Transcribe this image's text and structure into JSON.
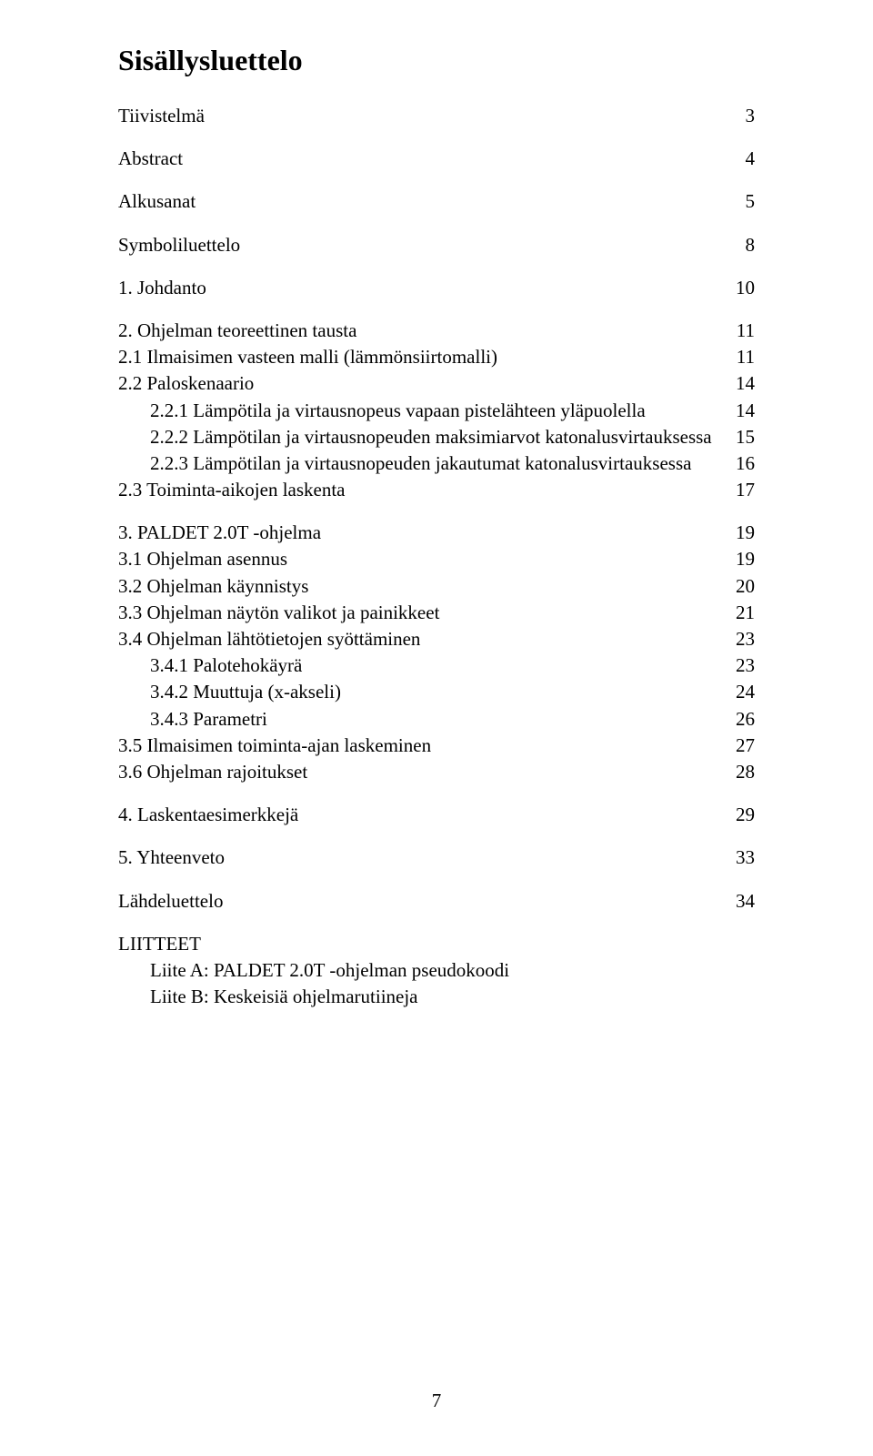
{
  "title": "Sisällysluettelo",
  "page_number": "7",
  "fonts": {
    "title_size_pt": 24,
    "body_size_pt": 16,
    "family": "Times New Roman"
  },
  "colors": {
    "text": "#000000",
    "background": "#ffffff"
  },
  "toc": [
    {
      "label": "Tiivistelmä",
      "page": "3",
      "indent": 0,
      "gap_after": true
    },
    {
      "label": "Abstract",
      "page": "4",
      "indent": 0,
      "gap_after": true
    },
    {
      "label": "Alkusanat",
      "page": "5",
      "indent": 0,
      "gap_after": true
    },
    {
      "label": "Symboliluettelo",
      "page": "8",
      "indent": 0,
      "gap_after": true
    },
    {
      "label": "1. Johdanto",
      "page": "10",
      "indent": 0,
      "gap_after": true
    },
    {
      "label": "2. Ohjelman teoreettinen tausta",
      "page": "11",
      "indent": 0
    },
    {
      "label": "2.1 Ilmaisimen vasteen malli (lämmönsiirtomalli)",
      "page": "11",
      "indent": 1
    },
    {
      "label": "2.2 Paloskenaario",
      "page": "14",
      "indent": 1
    },
    {
      "label": "2.2.1 Lämpötila ja virtausnopeus vapaan pistelähteen yläpuolella",
      "page": "14",
      "indent": 2
    },
    {
      "label": "2.2.2 Lämpötilan ja virtausnopeuden maksimiarvot katonalusvirtauksessa",
      "page": "15",
      "indent": 2
    },
    {
      "label": "2.2.3 Lämpötilan ja virtausnopeuden jakautumat katonalusvirtauksessa",
      "page": "16",
      "indent": 2
    },
    {
      "label": "2.3 Toiminta-aikojen laskenta",
      "page": "17",
      "indent": 1,
      "gap_after": true
    },
    {
      "label": "3. PALDET 2.0T -ohjelma",
      "page": "19",
      "indent": 0
    },
    {
      "label": "3.1 Ohjelman asennus",
      "page": "19",
      "indent": 1
    },
    {
      "label": "3.2 Ohjelman käynnistys",
      "page": "20",
      "indent": 1
    },
    {
      "label": "3.3 Ohjelman näytön valikot ja painikkeet",
      "page": "21",
      "indent": 1
    },
    {
      "label": "3.4 Ohjelman lähtötietojen syöttäminen",
      "page": "23",
      "indent": 1
    },
    {
      "label": "3.4.1 Palotehokäyrä",
      "page": "23",
      "indent": 2
    },
    {
      "label": "3.4.2 Muuttuja (x-akseli)",
      "page": "24",
      "indent": 2
    },
    {
      "label": "3.4.3 Parametri",
      "page": "26",
      "indent": 2
    },
    {
      "label": "3.5 Ilmaisimen toiminta-ajan laskeminen",
      "page": "27",
      "indent": 1
    },
    {
      "label": "3.6 Ohjelman rajoitukset",
      "page": "28",
      "indent": 1,
      "gap_after": true
    },
    {
      "label": "4. Laskentaesimerkkejä",
      "page": "29",
      "indent": 0,
      "gap_after": true
    },
    {
      "label": "5. Yhteenveto",
      "page": "33",
      "indent": 0,
      "gap_after": true
    },
    {
      "label": "Lähdeluettelo",
      "page": "34",
      "indent": 0,
      "gap_after": true
    },
    {
      "label": "LIITTEET",
      "page": "",
      "indent": 0
    },
    {
      "label": "Liite A: PALDET 2.0T -ohjelman pseudokoodi",
      "page": "",
      "indent": 2
    },
    {
      "label": "Liite B: Keskeisiä ohjelmarutiineja",
      "page": "",
      "indent": 2
    }
  ]
}
